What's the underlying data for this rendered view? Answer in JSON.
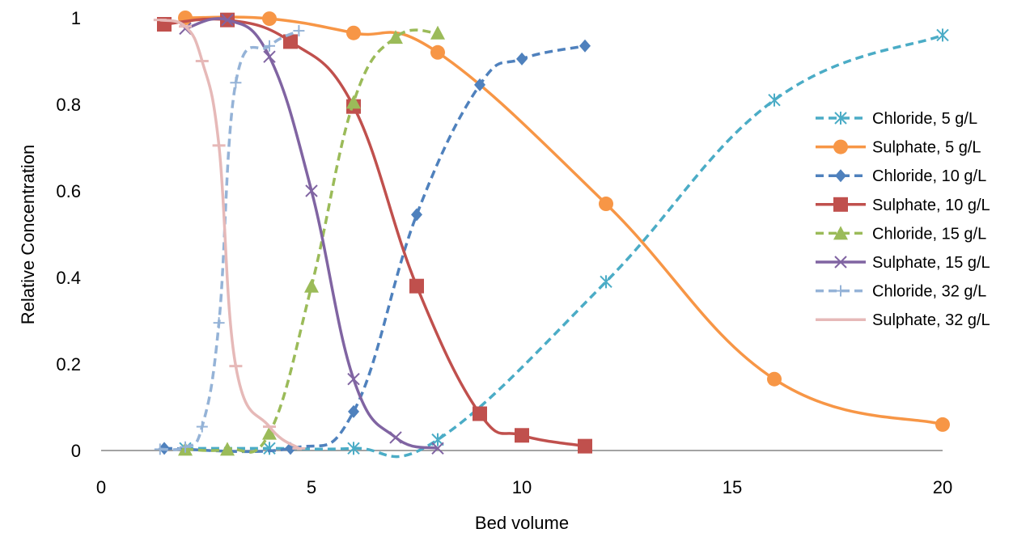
{
  "chart_data": {
    "type": "scatter",
    "title": "",
    "xlabel": "Bed volume",
    "ylabel": "Relative Concentration",
    "xlim": [
      0,
      20
    ],
    "ylim": [
      0,
      1
    ],
    "xticks": [
      "0",
      "5",
      "10",
      "15",
      "20"
    ],
    "yticks": [
      "0",
      "0.2",
      "0.4",
      "0.6",
      "0.8",
      "1"
    ],
    "grid": false,
    "legend_position": "right",
    "series": [
      {
        "name": "Chloride, 5 g/L",
        "color": "#4BACC6",
        "marker": "asterisk",
        "dashed": true,
        "x": [
          2,
          4,
          6,
          8,
          12,
          16,
          20
        ],
        "y": [
          0.005,
          0.005,
          0.005,
          0.025,
          0.39,
          0.81,
          0.96
        ]
      },
      {
        "name": "Sulphate, 5 g/L",
        "color": "#F79646",
        "marker": "circle",
        "dashed": false,
        "x": [
          2,
          4,
          6,
          8,
          12,
          16,
          20
        ],
        "y": [
          1.0,
          0.998,
          0.965,
          0.92,
          0.57,
          0.165,
          0.06
        ]
      },
      {
        "name": "Chloride, 10 g/L",
        "color": "#4F81BD",
        "marker": "diamond",
        "dashed": true,
        "x": [
          1.5,
          4.5,
          6,
          7.5,
          9,
          10,
          11.5
        ],
        "y": [
          0.005,
          0.005,
          0.09,
          0.545,
          0.845,
          0.905,
          0.935
        ]
      },
      {
        "name": "Sulphate, 10 g/L",
        "color": "#C0504D",
        "marker": "square",
        "dashed": false,
        "x": [
          1.5,
          3,
          4.5,
          6,
          7.5,
          9,
          10,
          11.5
        ],
        "y": [
          0.985,
          0.995,
          0.945,
          0.795,
          0.38,
          0.085,
          0.035,
          0.01
        ]
      },
      {
        "name": "Chloride, 15 g/L",
        "color": "#9BBB59",
        "marker": "triangle",
        "dashed": true,
        "x": [
          2,
          3,
          4,
          5,
          6,
          7,
          8
        ],
        "y": [
          0.003,
          0.003,
          0.04,
          0.38,
          0.805,
          0.955,
          0.965
        ]
      },
      {
        "name": "Sulphate, 15 g/L",
        "color": "#8064A2",
        "marker": "x",
        "dashed": false,
        "x": [
          2,
          3,
          4,
          5,
          6,
          7,
          8
        ],
        "y": [
          0.975,
          0.995,
          0.91,
          0.6,
          0.165,
          0.03,
          0.005
        ]
      },
      {
        "name": "Chloride, 32 g/L",
        "color": "#95B3D7",
        "marker": "plus",
        "dashed": true,
        "x": [
          1.4,
          2,
          2.4,
          2.8,
          3.2,
          4,
          4.7
        ],
        "y": [
          0.003,
          0.008,
          0.055,
          0.295,
          0.85,
          0.935,
          0.97
        ]
      },
      {
        "name": "Sulphate, 32 g/L",
        "color": "#E6B9B8",
        "marker": "dash",
        "dashed": false,
        "x": [
          1.4,
          2,
          2.4,
          2.8,
          3.2,
          4,
          4.7
        ],
        "y": [
          0.995,
          0.98,
          0.9,
          0.705,
          0.195,
          0.055,
          0.005
        ]
      }
    ]
  }
}
